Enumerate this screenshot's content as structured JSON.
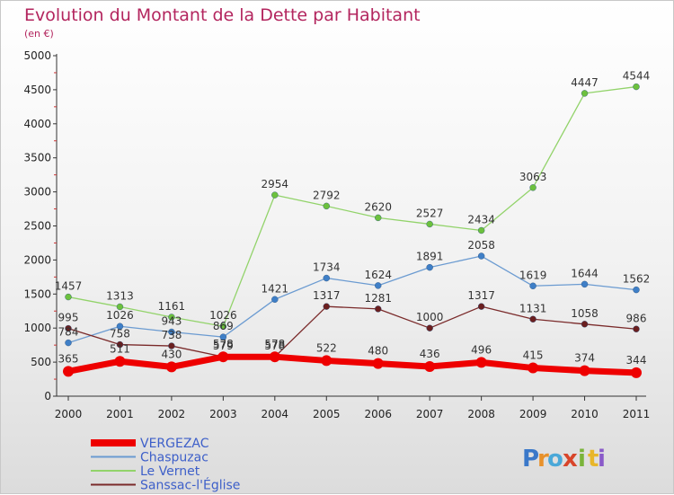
{
  "chart_data": {
    "type": "line",
    "title": "Evolution du Montant de la Dette par Habitant",
    "subtitle": "(en €)",
    "x": [
      "2000",
      "2001",
      "2002",
      "2003",
      "2004",
      "2005",
      "2006",
      "2007",
      "2008",
      "2009",
      "2010",
      "2011"
    ],
    "ylim": [
      0,
      5000
    ],
    "yticks": [
      0,
      500,
      1000,
      1500,
      2000,
      2500,
      3000,
      3500,
      4000,
      4500,
      5000
    ],
    "legend_position": "bottom-left",
    "grid": false,
    "series": [
      {
        "name": "Le Vernet",
        "color": "#92d36a",
        "markerColor": "#6cc13d",
        "width": 1.3,
        "marker": 3.5,
        "values": [
          1457,
          1313,
          1161,
          1026,
          2954,
          2792,
          2620,
          2527,
          2434,
          3063,
          4447,
          4544
        ]
      },
      {
        "name": "Chaspuzac",
        "color": "#6b9bd1",
        "markerColor": "#3f7fc7",
        "width": 1.3,
        "marker": 3.5,
        "values": [
          784,
          1026,
          943,
          869,
          1421,
          1734,
          1624,
          1891,
          2058,
          1619,
          1644,
          1562
        ]
      },
      {
        "name": "Sanssac-l'Église",
        "color": "#7a2a2a",
        "markerColor": "#6b1f1f",
        "width": 1.3,
        "marker": 3.5,
        "values": [
          995,
          758,
          738,
          579,
          578,
          1317,
          1281,
          1000,
          1317,
          1131,
          1058,
          986
        ]
      },
      {
        "name": "VERGEZAC",
        "color": "#ee0000",
        "markerColor": "#ee0000",
        "width": 7,
        "marker": 6,
        "values": [
          365,
          511,
          430,
          578,
          578,
          522,
          480,
          436,
          496,
          415,
          374,
          344
        ]
      }
    ]
  },
  "legend_order": [
    "VERGEZAC",
    "Chaspuzac",
    "Le Vernet",
    "Sanssac-l'Église"
  ],
  "logo": {
    "letters": [
      "P",
      "r",
      "o",
      "x",
      "i",
      "t",
      "i"
    ]
  }
}
